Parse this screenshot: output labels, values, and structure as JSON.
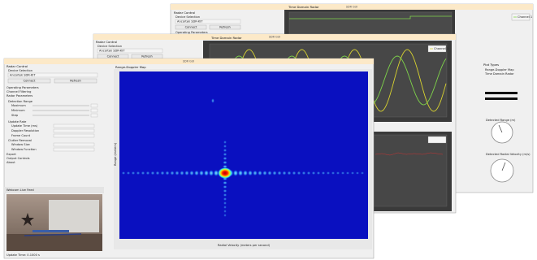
{
  "back_window": {
    "title": "SDR GUI",
    "panel_title": "Radar Control",
    "device_label": "Device Selection",
    "device": "Ancortek SDR-KIT",
    "buttons": [
      "Connect",
      "Refresh"
    ],
    "section": "Operating Parameters",
    "plot_title": "Time Domain Radar",
    "legend": "Channel 1",
    "side_title": "Plot Types",
    "side_items": [
      "Range-Doppler Map",
      "Time Domain Radar"
    ],
    "gauges": [
      "Detected Range (m)",
      "Detected Radial Velocity (m/s)"
    ]
  },
  "middle_window": {
    "title": "SDR GUI",
    "panel_title": "Radar Control",
    "device_label": "Device Selection",
    "device": "Ancortek SDR-KIT",
    "buttons": [
      "Connect",
      "Refresh"
    ],
    "plot_title": "Time Domain Radar",
    "legend": "Channel 1"
  },
  "front_window": {
    "title": "SDR GUI",
    "panel_title": "Radar Control",
    "device_label": "Device Selection",
    "device": "Ancortek SDR-KIT",
    "buttons": [
      "Connect",
      "Refresh"
    ],
    "sections": [
      "Operating Parameters",
      "Channel Filtering",
      "Radar Parameters"
    ],
    "range_group": "Detection Range",
    "range_fields": [
      "Maximum",
      "Minimum",
      "Step"
    ],
    "update_group": "Update Rate",
    "update_fields": [
      "Update Time (ms)",
      "Doppler Resolution",
      "Frame Count"
    ],
    "filter_group": "Clutter Removal",
    "filter_fields": [
      "Window Size",
      "Window Function"
    ],
    "footer_items": [
      "Export",
      "Output Controls",
      "About"
    ],
    "plot_title": "Range-Doppler Map",
    "y_label": "Range (meters)",
    "x_label": "Radial Velocity (meters per second)",
    "webcam_title": "Webcam Live Feed",
    "status": "Update Time: 0.1000 s"
  }
}
